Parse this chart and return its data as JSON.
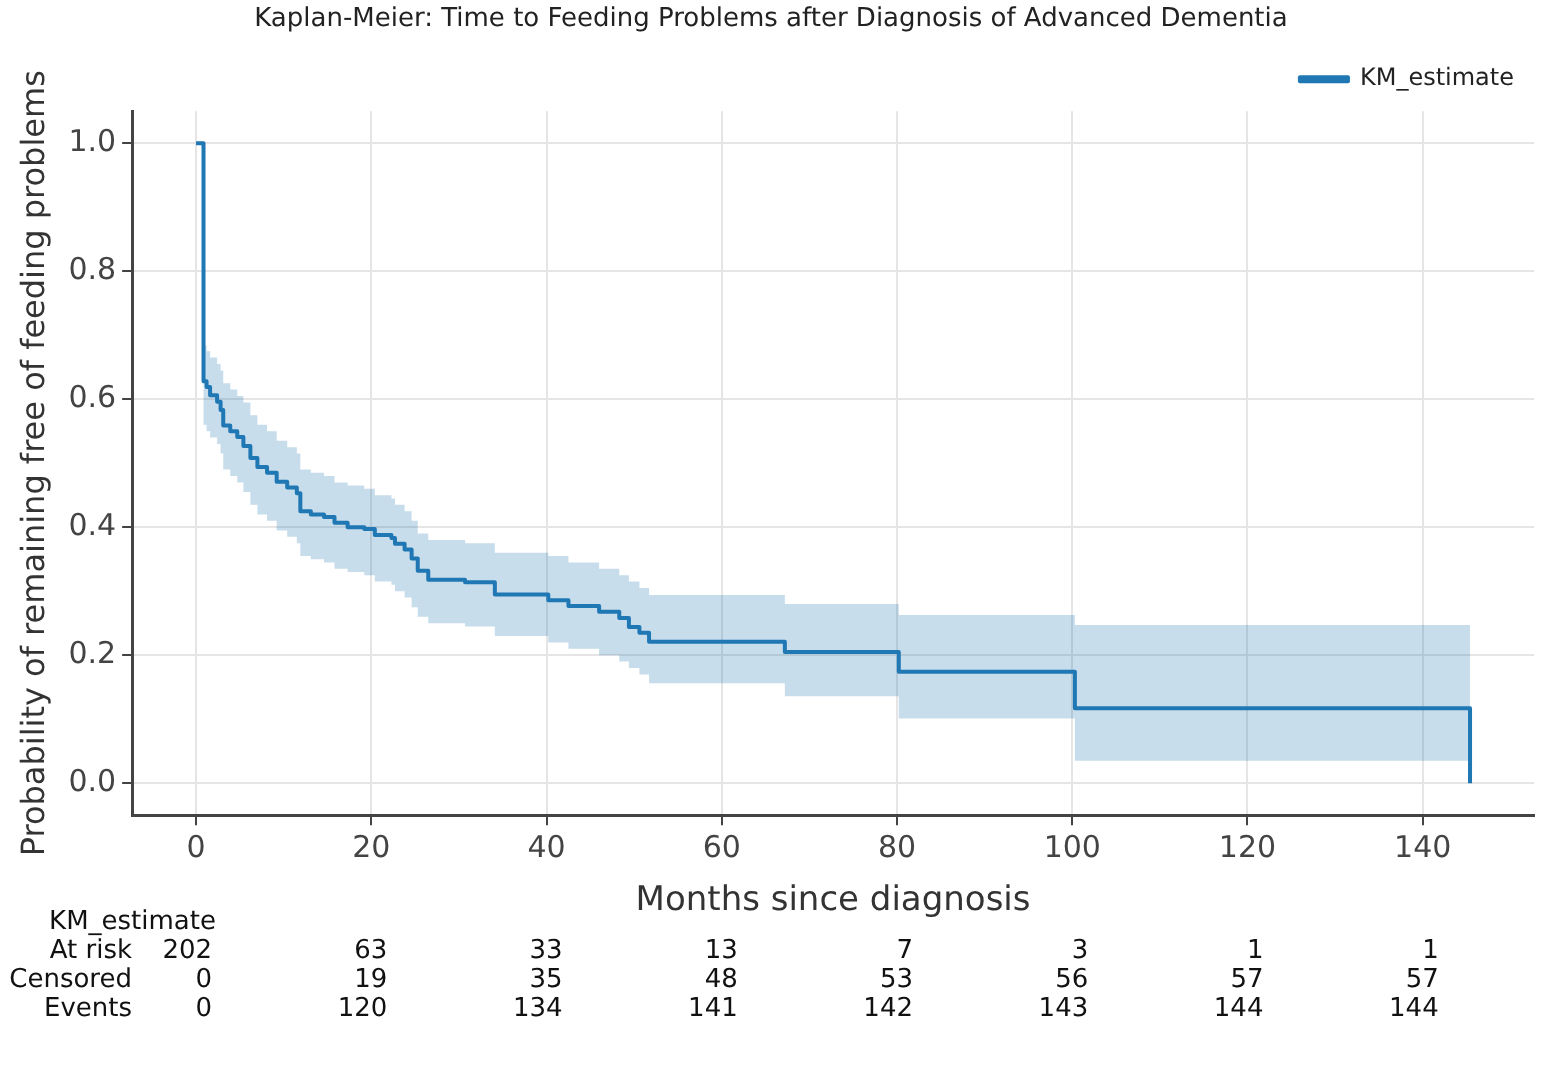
{
  "chart_data": {
    "type": "step",
    "title": "Kaplan-Meier: Time to Feeding Problems after Diagnosis of Advanced Dementia",
    "xlabel": "Months since diagnosis",
    "ylabel": "Probability of remaining free of feeding problems",
    "xlim": [
      -7.3,
      152.7
    ],
    "xticks": [
      0,
      20,
      40,
      60,
      80,
      100,
      120,
      140
    ],
    "ylim": [
      -0.05,
      1.05
    ],
    "yticks": [
      {
        "value": 0,
        "label": "0.0"
      },
      {
        "value": 0.2,
        "label": "0.2"
      },
      {
        "value": 0.4,
        "label": "0.4"
      },
      {
        "value": 0.6,
        "label": "0.6"
      },
      {
        "value": 0.8,
        "label": "0.8"
      },
      {
        "value": 1,
        "label": "1.0"
      }
    ],
    "grid": true,
    "legend": "top right",
    "series": [
      {
        "name": "KM_estimate",
        "color": "#1f77b4",
        "x": [
          0,
          0.85,
          1.2,
          1.6,
          2.4,
          2.8,
          3.1,
          3.9,
          4.7,
          5.4,
          6.2,
          7.0,
          8.1,
          9.2,
          10.4,
          11.5,
          11.9,
          13.1,
          14.6,
          15.8,
          17.3,
          19.2,
          20.4,
          22.3,
          22.7,
          23.8,
          24.6,
          25.3,
          26.5,
          30.7,
          34.1,
          40.2,
          42.5,
          46.0,
          48.3,
          49.4,
          50.6,
          51.7,
          67.2,
          80.2,
          100.3,
          145.4
        ],
        "values": [
          1.0,
          0.628,
          0.619,
          0.606,
          0.596,
          0.583,
          0.559,
          0.55,
          0.541,
          0.527,
          0.508,
          0.494,
          0.485,
          0.471,
          0.462,
          0.453,
          0.425,
          0.42,
          0.416,
          0.407,
          0.4,
          0.397,
          0.388,
          0.383,
          0.374,
          0.365,
          0.351,
          0.332,
          0.318,
          0.314,
          0.295,
          0.286,
          0.277,
          0.268,
          0.258,
          0.244,
          0.235,
          0.221,
          0.205,
          0.174,
          0.117,
          0.0
        ],
        "lower": [
          1.0,
          0.56,
          0.55,
          0.54,
          0.53,
          0.515,
          0.49,
          0.48,
          0.47,
          0.455,
          0.435,
          0.42,
          0.41,
          0.395,
          0.385,
          0.375,
          0.355,
          0.35,
          0.345,
          0.335,
          0.33,
          0.325,
          0.315,
          0.31,
          0.3,
          0.29,
          0.275,
          0.26,
          0.25,
          0.245,
          0.23,
          0.22,
          0.21,
          0.2,
          0.19,
          0.18,
          0.17,
          0.156,
          0.136,
          0.101,
          0.035,
          0.035
        ],
        "upper": [
          1.0,
          0.684,
          0.675,
          0.665,
          0.655,
          0.645,
          0.625,
          0.615,
          0.605,
          0.595,
          0.575,
          0.56,
          0.55,
          0.535,
          0.525,
          0.515,
          0.49,
          0.485,
          0.48,
          0.47,
          0.465,
          0.46,
          0.45,
          0.445,
          0.435,
          0.425,
          0.41,
          0.39,
          0.38,
          0.375,
          0.36,
          0.355,
          0.345,
          0.335,
          0.325,
          0.315,
          0.305,
          0.294,
          0.28,
          0.263,
          0.247,
          0.247
        ]
      }
    ],
    "annotations": [
      "KM_estimate",
      "At risk",
      "Censored",
      "Events",
      "202",
      "63",
      "33",
      "13",
      "7",
      "3",
      "1",
      "1",
      "0",
      "19",
      "35",
      "48",
      "53",
      "56",
      "57",
      "57",
      "0",
      "120",
      "134",
      "141",
      "142",
      "143",
      "144",
      "144"
    ]
  }
}
